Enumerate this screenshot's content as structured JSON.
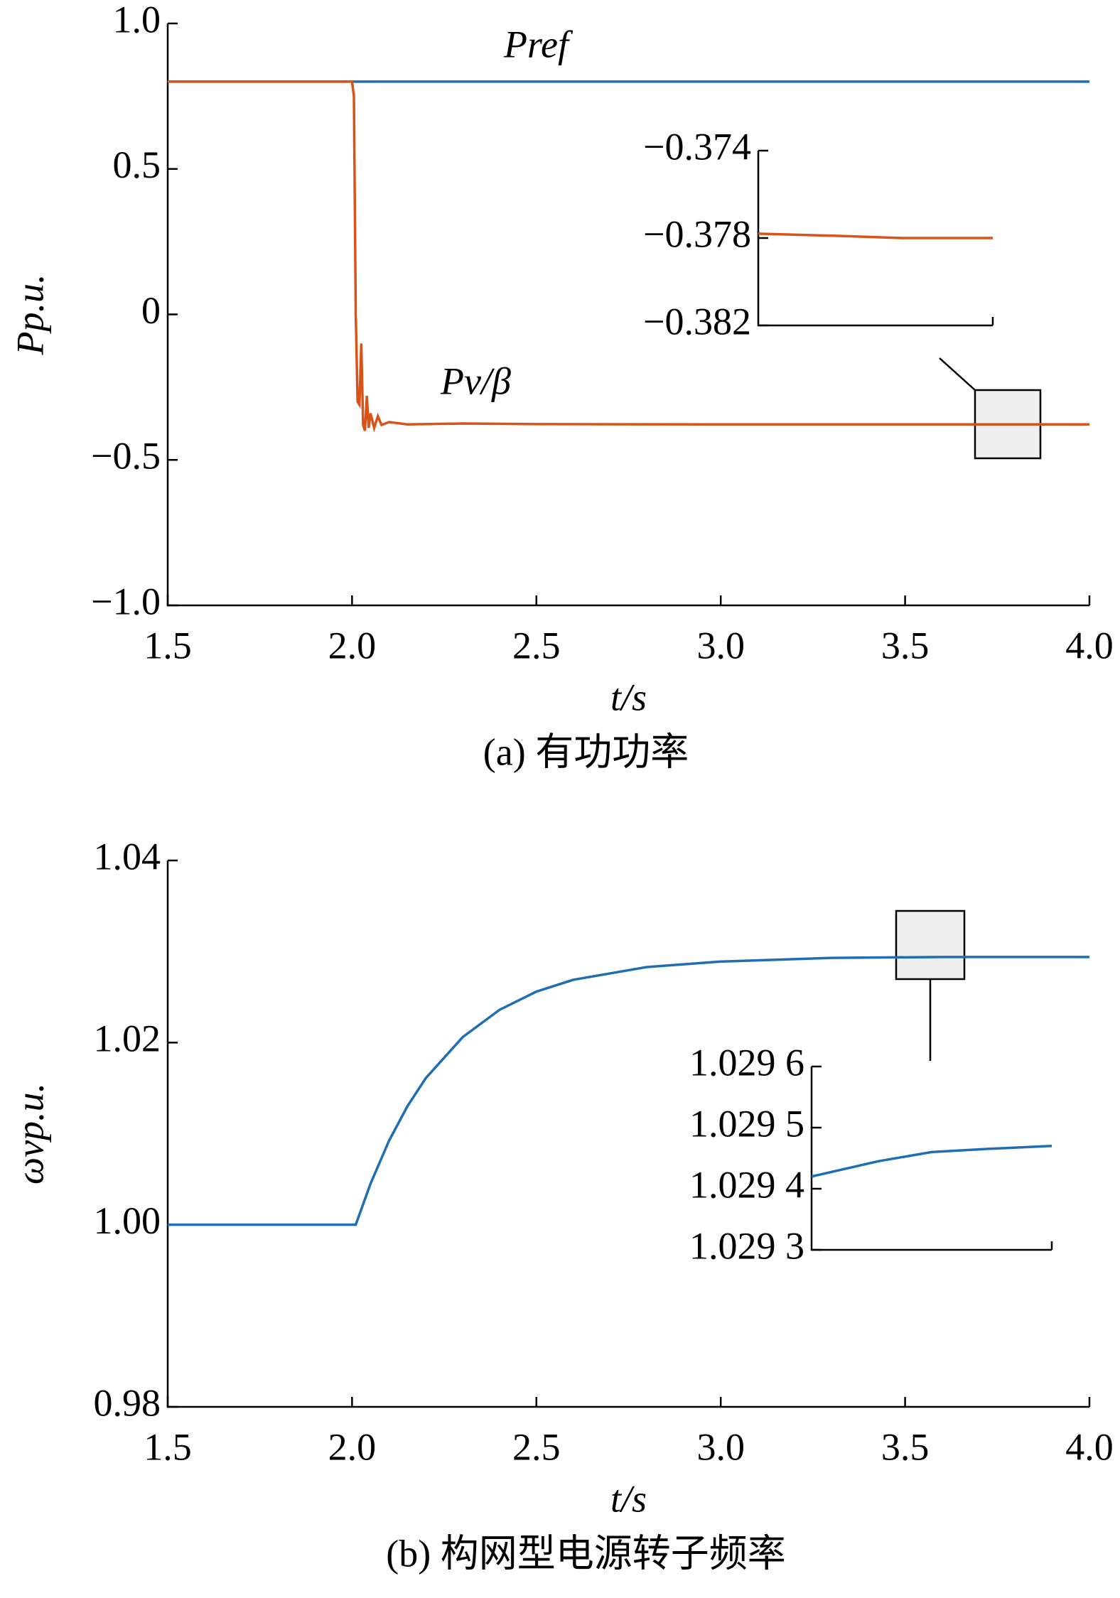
{
  "chart_data": [
    {
      "type": "line",
      "xlabel": "t/s",
      "ylabel": "Pp.u.",
      "caption": "(a) 有功功率",
      "xlim": [
        1.5,
        4.0
      ],
      "xticks": [
        {
          "value": 1.5,
          "label": "1.5"
        },
        {
          "value": 2.0,
          "label": "2.0"
        },
        {
          "value": 2.5,
          "label": "2.5"
        },
        {
          "value": 3.0,
          "label": "3.0"
        },
        {
          "value": 3.5,
          "label": "3.5"
        },
        {
          "value": 4.0,
          "label": "4.0"
        }
      ],
      "ylim": [
        -1.0,
        1.0
      ],
      "yticks": [
        {
          "value": -1.0,
          "label": "−1.0"
        },
        {
          "value": -0.5,
          "label": "−0.5"
        },
        0,
        0.5,
        {
          "value": 1.0,
          "label": "1.0"
        }
      ],
      "series": [
        {
          "name": "Pref",
          "color": "#1f6eb4",
          "x": [
            1.5,
            4.0
          ],
          "values": [
            0.8,
            0.8
          ]
        },
        {
          "name": "Pv/β",
          "color": "#d95319",
          "x": [
            1.5,
            2.0,
            2.005,
            2.01,
            2.015,
            2.02,
            2.025,
            2.03,
            2.035,
            2.04,
            2.045,
            2.05,
            2.06,
            2.07,
            2.08,
            2.1,
            2.15,
            2.3,
            2.5,
            3.0,
            3.5,
            4.0
          ],
          "values": [
            0.8,
            0.8,
            0.75,
            0.0,
            -0.3,
            -0.31,
            -0.1,
            -0.38,
            -0.4,
            -0.28,
            -0.39,
            -0.34,
            -0.39,
            -0.35,
            -0.38,
            -0.37,
            -0.378,
            -0.375,
            -0.377,
            -0.378,
            -0.378,
            -0.378
          ]
        }
      ]
    },
    {
      "type": "line",
      "xlim": [
        3.69,
        3.87
      ],
      "ylim": [
        -0.382,
        -0.374
      ],
      "yticks": [
        {
          "value": -0.382,
          "label": "−0.382"
        },
        {
          "value": -0.378,
          "label": "−0.378"
        },
        {
          "value": -0.374,
          "label": "−0.374"
        }
      ],
      "series": [
        {
          "color": "#d95319",
          "x": [
            3.69,
            3.75,
            3.8,
            3.87
          ],
          "values": [
            -0.3778,
            -0.3779,
            -0.378,
            -0.378
          ]
        }
      ]
    },
    {
      "type": "line",
      "xlabel": "t/s",
      "ylabel": "ωvp.u.",
      "caption": "(b)  构网型电源转子频率",
      "xlim": [
        1.5,
        4.0
      ],
      "xticks": [
        {
          "value": 1.5,
          "label": "1.5"
        },
        {
          "value": 2.0,
          "label": "2.0"
        },
        {
          "value": 2.5,
          "label": "2.5"
        },
        {
          "value": 3.0,
          "label": "3.0"
        },
        {
          "value": 3.5,
          "label": "3.5"
        },
        {
          "value": 4.0,
          "label": "4.0"
        }
      ],
      "ylim": [
        0.98,
        1.04
      ],
      "yticks": [
        0.98,
        {
          "value": 1.0,
          "label": "1.00"
        },
        1.02,
        1.04
      ],
      "series": [
        {
          "color": "#1f6eb4",
          "x": [
            1.5,
            2.0,
            2.01,
            2.05,
            2.1,
            2.15,
            2.2,
            2.3,
            2.4,
            2.5,
            2.6,
            2.8,
            3.0,
            3.3,
            3.6,
            4.0
          ],
          "values": [
            1.0,
            1.0,
            1.0,
            1.0045,
            1.0092,
            1.013,
            1.0161,
            1.0206,
            1.0236,
            1.0256,
            1.0269,
            1.0283,
            1.0289,
            1.0293,
            1.0294,
            1.0294
          ]
        }
      ]
    },
    {
      "type": "line",
      "xlim": [
        3.47,
        3.65
      ],
      "ylim": [
        1.0293,
        1.0296
      ],
      "yticks": [
        {
          "value": 1.0293,
          "label": "1.029 3"
        },
        {
          "value": 1.0294,
          "label": "1.029 4"
        },
        {
          "value": 1.0295,
          "label": "1.029 5"
        },
        {
          "value": 1.0296,
          "label": "1.029 6"
        }
      ],
      "series": [
        {
          "color": "#1f6eb4",
          "x": [
            3.47,
            3.52,
            3.56,
            3.6,
            3.65
          ],
          "values": [
            1.02942,
            1.029445,
            1.02946,
            1.029465,
            1.02947
          ]
        }
      ]
    }
  ]
}
